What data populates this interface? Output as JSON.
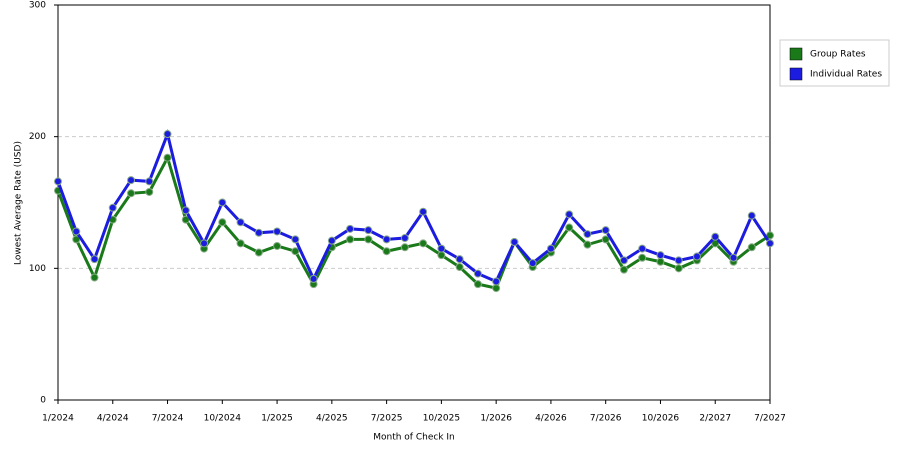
{
  "chart_data": {
    "type": "line",
    "xlabel": "Month of Check In",
    "ylabel": "Lowest Average Rate (USD)",
    "categories": [
      "1/2024",
      null,
      null,
      "4/2024",
      null,
      null,
      "7/2024",
      null,
      null,
      "10/2024",
      null,
      null,
      "1/2025",
      null,
      null,
      "4/2025",
      null,
      null,
      "7/2025",
      null,
      null,
      "10/2025",
      null,
      null,
      "1/2026",
      null,
      null,
      "4/2026",
      null,
      null,
      "7/2026",
      null,
      null,
      "10/2026",
      null,
      null,
      "2/2027",
      null,
      null,
      "7/2027"
    ],
    "series": [
      {
        "name": "Group Rates",
        "color": "#1a7a1a",
        "values": [
          159,
          122,
          93,
          137,
          157,
          158,
          184,
          137,
          115,
          135,
          119,
          112,
          117,
          113,
          88,
          116,
          122,
          122,
          113,
          116,
          119,
          110,
          101,
          88,
          85,
          120,
          101,
          112,
          131,
          118,
          122,
          99,
          108,
          105,
          100,
          106,
          119,
          105,
          116,
          125
        ]
      },
      {
        "name": "Individual Rates",
        "color": "#1c1ce0",
        "values": [
          166,
          128,
          107,
          146,
          167,
          166,
          202,
          144,
          119,
          150,
          135,
          127,
          128,
          122,
          92,
          121,
          130,
          129,
          122,
          123,
          143,
          115,
          107,
          96,
          90,
          120,
          104,
          115,
          141,
          126,
          129,
          106,
          115,
          110,
          106,
          109,
          124,
          108,
          140,
          119
        ]
      }
    ],
    "ylim": [
      0,
      300
    ],
    "yticks": [
      0,
      100,
      200,
      300
    ],
    "grid": true,
    "legend": "right"
  }
}
